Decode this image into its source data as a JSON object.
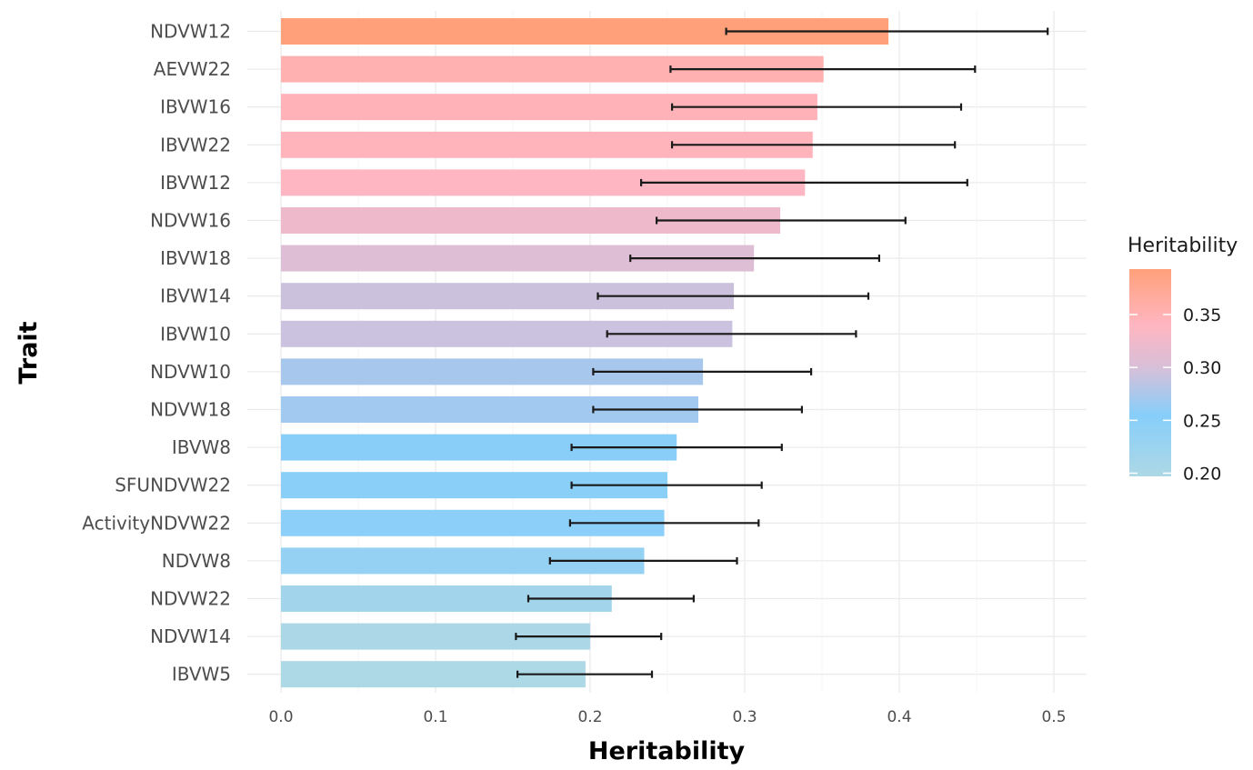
{
  "chart_data": {
    "type": "bar",
    "orientation": "horizontal",
    "xlabel": "Heritability",
    "ylabel": "Trait",
    "xlim": [
      -0.02,
      0.52
    ],
    "xticks": [
      "0.0",
      "0.1",
      "0.2",
      "0.3",
      "0.4",
      "0.5"
    ],
    "grid": true,
    "categories": [
      "NDVW12",
      "AEVW22",
      "IBVW16",
      "IBVW22",
      "IBVW12",
      "NDVW16",
      "IBVW18",
      "IBVW14",
      "IBVW10",
      "NDVW10",
      "NDVW18",
      "IBVW8",
      "SFUNDVW22",
      "ActivityNDVW22",
      "NDVW8",
      "NDVW22",
      "NDVW14",
      "IBVW5"
    ],
    "values": [
      0.393,
      0.351,
      0.347,
      0.344,
      0.339,
      0.323,
      0.306,
      0.293,
      0.292,
      0.273,
      0.27,
      0.256,
      0.25,
      0.248,
      0.235,
      0.214,
      0.2,
      0.197
    ],
    "error_low": [
      0.288,
      0.252,
      0.253,
      0.253,
      0.233,
      0.243,
      0.226,
      0.205,
      0.211,
      0.202,
      0.202,
      0.188,
      0.188,
      0.187,
      0.174,
      0.16,
      0.152,
      0.153
    ],
    "error_high": [
      0.496,
      0.449,
      0.44,
      0.436,
      0.444,
      0.404,
      0.387,
      0.38,
      0.372,
      0.343,
      0.337,
      0.324,
      0.311,
      0.309,
      0.295,
      0.267,
      0.246,
      0.24
    ],
    "legend": {
      "title": "Heritability",
      "position": "right",
      "ticks": [
        "0.35",
        "0.30",
        "0.25",
        "0.20"
      ],
      "tick_values": [
        0.35,
        0.3,
        0.25,
        0.2
      ],
      "range": [
        0.197,
        0.393
      ],
      "gradient": [
        {
          "value": 0.197,
          "color": "#add8e6"
        },
        {
          "value": 0.255,
          "color": "#87cefa"
        },
        {
          "value": 0.3,
          "color": "#d8bfd8"
        },
        {
          "value": 0.34,
          "color": "#ffb6c1"
        },
        {
          "value": 0.393,
          "color": "#ffa07a"
        }
      ]
    }
  }
}
